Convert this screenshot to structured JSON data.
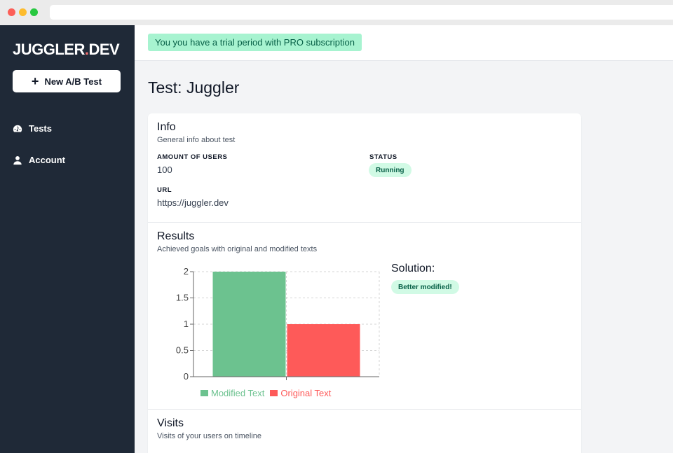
{
  "browser": {
    "window_controls": [
      "close",
      "minimize",
      "maximize"
    ]
  },
  "sidebar": {
    "logo_main": "JUGGLER",
    "logo_dot": ".",
    "logo_suffix": "DEV",
    "new_test_label": "New A/B Test",
    "items": [
      {
        "label": "Tests",
        "icon": "gauge-icon"
      },
      {
        "label": "Account",
        "icon": "user-icon"
      }
    ]
  },
  "topbar": {
    "trial_message": "You you have a trial period with PRO subscription"
  },
  "page": {
    "title": "Test: Juggler"
  },
  "info": {
    "title": "Info",
    "subtitle": "General info about test",
    "users_label": "AMOUNT OF USERS",
    "users_value": "100",
    "status_label": "STATUS",
    "status_value": "Running",
    "url_label": "URL",
    "url_value": "https://juggler.dev"
  },
  "results": {
    "title": "Results",
    "subtitle": "Achieved goals with original and modified texts",
    "solution_title": "Solution:",
    "solution_badge": "Better modified!"
  },
  "chart_data": {
    "type": "bar",
    "categories": [
      ""
    ],
    "series": [
      {
        "name": "Modified Text",
        "values": [
          2
        ],
        "color": "#6cc28f"
      },
      {
        "name": "Original Text",
        "values": [
          1
        ],
        "color": "#fe5a59"
      }
    ],
    "yticks": [
      "0",
      "0.5",
      "1",
      "1.5",
      "2"
    ],
    "ylim": [
      0,
      2
    ],
    "grid": true,
    "legend_position": "bottom"
  },
  "visits": {
    "title": "Visits",
    "subtitle": "Visits of your users on timeline"
  }
}
